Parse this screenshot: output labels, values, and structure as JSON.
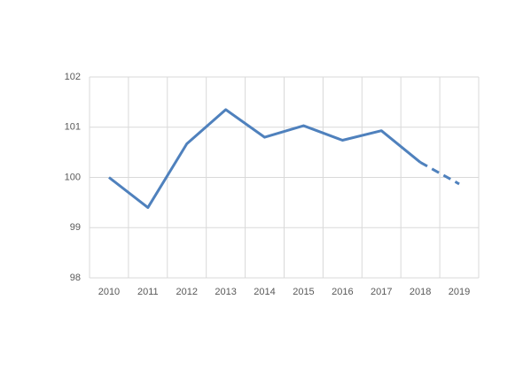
{
  "chart_data": {
    "type": "line",
    "categories": [
      "2010",
      "2011",
      "2012",
      "2013",
      "2014",
      "2015",
      "2016",
      "2017",
      "2018",
      "2019"
    ],
    "series": [
      {
        "color": "#4f81bd",
        "values": [
          100.0,
          99.4,
          100.67,
          101.35,
          100.8,
          101.03,
          100.74,
          100.93,
          100.3,
          99.87
        ]
      }
    ],
    "dashed_after": "2018",
    "ylim": [
      98,
      102
    ],
    "yticks": [
      98,
      99,
      100,
      101,
      102
    ],
    "grid": true
  }
}
